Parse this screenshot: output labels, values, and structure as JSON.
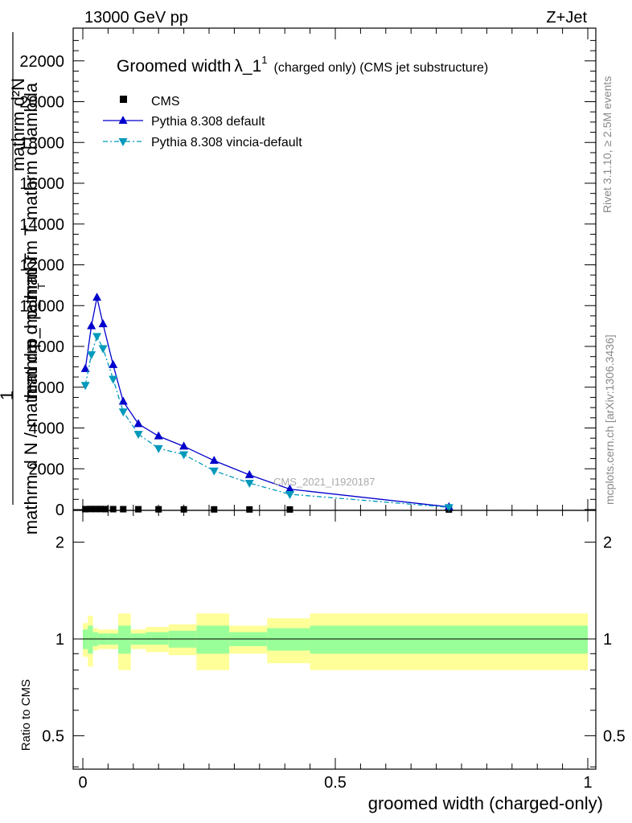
{
  "header": {
    "left": "13000 GeV pp",
    "right": "Z+Jet"
  },
  "side_labels": {
    "rivet": "Rivet 3.1.10, ≥ 2.5M events",
    "mcplots": "mcplots.cern.ch [arXiv:1306.3436]"
  },
  "watermark": "CMS_2021_I1920187",
  "chart_data": [
    {
      "type": "line",
      "title": "Groomed width",
      "title_symbol": "λ_1",
      "title_sup": "1",
      "title_suffix": "(charged only) (CMS jet substructure)",
      "ylabel_top": "mathrm d²N",
      "ylabel_mid": "mathrm d p_mathrm T mathrm d lambda",
      "ylabel_one": "1",
      "ylabel_bottom": "mathrm d N / mathrm d p_mathrm T",
      "ylabel_sub": "T",
      "xlim": [
        0,
        1
      ],
      "ylim": [
        0,
        23500
      ],
      "yticks": [
        0,
        2000,
        4000,
        6000,
        8000,
        10000,
        12000,
        14000,
        16000,
        18000,
        20000,
        22000
      ],
      "ytick_labels": [
        "0",
        "2000",
        "4000",
        "6000",
        "8000",
        "10000",
        "12000",
        "14000",
        "16000",
        "18000",
        "20000",
        "22000"
      ],
      "legend_position": "top-left",
      "series": [
        {
          "name": "CMS",
          "color": "#000000",
          "marker": "square",
          "x": [
            0.005,
            0.015,
            0.025,
            0.035,
            0.045,
            0.06,
            0.08,
            0.11,
            0.15,
            0.2,
            0.26,
            0.33,
            0.41,
            0.725
          ],
          "y": [
            20,
            25,
            25,
            25,
            22,
            20,
            18,
            15,
            12,
            10,
            8,
            6,
            4,
            2
          ]
        },
        {
          "name": "Pythia 8.308 default",
          "color": "#0000cc",
          "marker": "triangle-up",
          "x": [
            0.005,
            0.017,
            0.028,
            0.04,
            0.06,
            0.08,
            0.11,
            0.15,
            0.2,
            0.26,
            0.33,
            0.41,
            0.725
          ],
          "y": [
            6900,
            9000,
            10400,
            9100,
            7100,
            5300,
            4200,
            3600,
            3100,
            2400,
            1700,
            1000,
            130
          ]
        },
        {
          "name": "Pythia 8.308 vincia-default",
          "color": "#0099bb",
          "marker": "triangle-down",
          "x": [
            0.005,
            0.017,
            0.028,
            0.04,
            0.06,
            0.08,
            0.11,
            0.15,
            0.2,
            0.26,
            0.33,
            0.41,
            0.725
          ],
          "y": [
            6100,
            7600,
            8500,
            7900,
            6400,
            4800,
            3700,
            3000,
            2700,
            1900,
            1300,
            750,
            110
          ]
        }
      ]
    },
    {
      "type": "area",
      "ylabel": "Ratio to CMS",
      "xlabel": "groomed width (charged-only)",
      "xlim": [
        0,
        1
      ],
      "ylim": [
        0.35,
        2.3
      ],
      "yticks": [
        0.5,
        1,
        2
      ],
      "ytick_labels": [
        "0.5",
        "1",
        "2"
      ],
      "xticks": [
        0,
        0.5,
        1
      ],
      "xtick_labels": [
        "0",
        "0.5",
        "1"
      ],
      "reference_line": 1,
      "bands": {
        "edges": [
          0.0,
          0.01,
          0.02,
          0.03,
          0.05,
          0.07,
          0.095,
          0.125,
          0.17,
          0.225,
          0.29,
          0.365,
          0.45,
          1.0
        ],
        "green_low": [
          0.93,
          0.9,
          0.95,
          0.96,
          0.96,
          0.9,
          0.96,
          0.96,
          0.94,
          0.9,
          0.95,
          0.92,
          0.9
        ],
        "green_high": [
          1.07,
          1.1,
          1.05,
          1.04,
          1.04,
          1.1,
          1.04,
          1.05,
          1.06,
          1.1,
          1.05,
          1.08,
          1.1
        ],
        "yellow_low": [
          0.88,
          0.82,
          0.92,
          0.93,
          0.93,
          0.8,
          0.93,
          0.91,
          0.89,
          0.8,
          0.9,
          0.84,
          0.8
        ],
        "yellow_high": [
          1.12,
          1.18,
          1.08,
          1.07,
          1.07,
          1.2,
          1.07,
          1.09,
          1.11,
          1.2,
          1.1,
          1.16,
          1.2
        ],
        "green_color": "#99ff99",
        "yellow_color": "#ffff99"
      }
    }
  ]
}
